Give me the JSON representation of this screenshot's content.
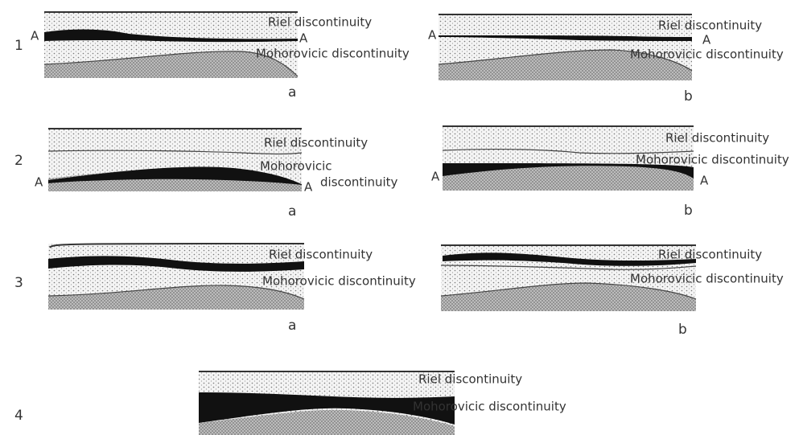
{
  "rows": [
    {
      "number": "1",
      "panels": [
        {
          "letter": "a",
          "riel_label": "Riel discontinuity",
          "moho_label": "Mohorovicic discontinuity",
          "markers": [
            "A",
            "A"
          ]
        },
        {
          "letter": "b",
          "riel_label": "Riel discontinuity",
          "moho_label": "Mohorovicic discontinuity",
          "markers": [
            "A",
            "A"
          ]
        }
      ]
    },
    {
      "number": "2",
      "panels": [
        {
          "letter": "a",
          "riel_label": "Riel discontinuity",
          "moho_label_lines": [
            "Mohorovicic",
            "discontinuity"
          ],
          "markers": [
            "A",
            "A"
          ]
        },
        {
          "letter": "b",
          "riel_label": "Riel discontinuity",
          "moho_label": "Mohorovicic discontinuity",
          "markers": [
            "A",
            "A"
          ]
        }
      ]
    },
    {
      "number": "3",
      "panels": [
        {
          "letter": "a",
          "riel_label": "Riel discontinuity",
          "moho_label": "Mohorovicic discontinuity"
        },
        {
          "letter": "b",
          "riel_label": "Riel discontinuity",
          "moho_label": "Mohorovicic discontinuity"
        }
      ]
    },
    {
      "number": "4",
      "panels": [
        {
          "riel_label": "Riel discontinuity",
          "moho_label": "Mohorovicic discontinuity"
        }
      ]
    }
  ]
}
